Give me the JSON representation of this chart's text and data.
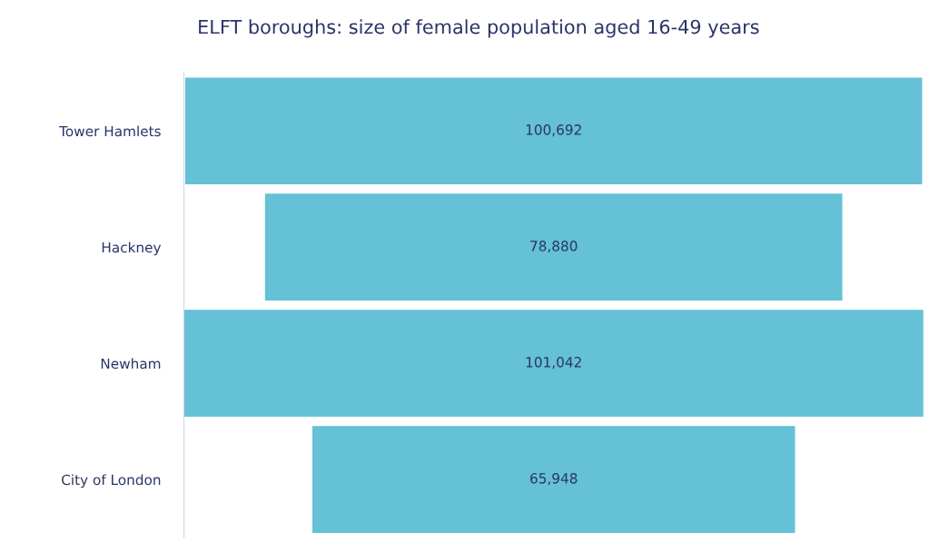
{
  "chart_data": {
    "type": "other",
    "title": "ELFT boroughs: size of female population aged 16-49 years",
    "categories": [
      "Tower Hamlets",
      "Hackney",
      "Newham",
      "City of London"
    ],
    "values": [
      100692,
      78880,
      101042,
      65948
    ],
    "value_labels": [
      "100,692",
      "78,880",
      "101,042",
      "65,948"
    ],
    "color": "#64c1d6"
  }
}
